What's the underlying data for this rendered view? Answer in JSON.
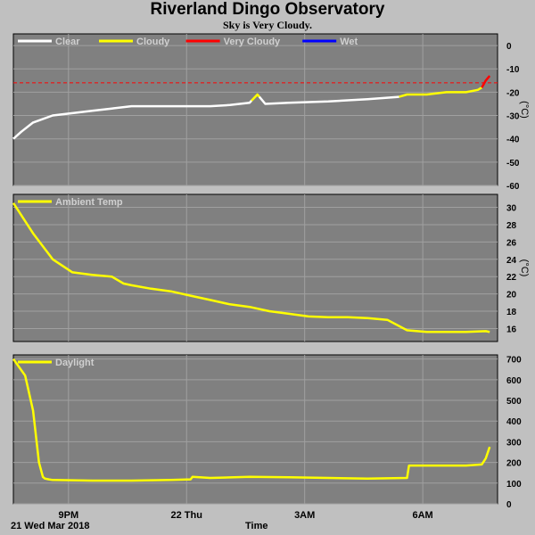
{
  "title": "Riverland Dingo Observatory",
  "subtitle": "Sky is Very Cloudy.",
  "x_axis": {
    "ticks": [
      {
        "label": "9PM",
        "hours": 1.4
      },
      {
        "label": "22 Thu",
        "hours": 4.4
      },
      {
        "label": "3AM",
        "hours": 7.4
      },
      {
        "label": "6AM",
        "hours": 10.4
      }
    ],
    "gridlines": [
      1.4,
      4.4,
      7.4,
      10.4
    ],
    "start_label": "21 Wed Mar 2018",
    "title": "Time",
    "range_hours": [
      0,
      12.3
    ]
  },
  "colors": {
    "background": "#c0c0c0",
    "plot_bg": "#808080",
    "grid": "#a0a0a0",
    "clear": "#ffffff",
    "cloudy": "#ffff00",
    "very_cloudy": "#ff0000",
    "wet": "#0000ff",
    "series": "#ffff00"
  },
  "chart_data": [
    {
      "type": "line",
      "legend": [
        {
          "name": "Clear",
          "color": "#ffffff"
        },
        {
          "name": "Cloudy",
          "color": "#ffff00"
        },
        {
          "name": "Very Cloudy",
          "color": "#ff0000"
        },
        {
          "name": "Wet",
          "color": "#0000ff"
        }
      ],
      "ylabel": "(°C)",
      "ylim": [
        -60,
        5
      ],
      "yticks": [
        0,
        -10,
        -20,
        -30,
        -40,
        -50,
        -60
      ],
      "threshold": -16,
      "x": [
        0,
        0.2,
        0.5,
        1.0,
        1.5,
        2.0,
        2.5,
        3.0,
        3.5,
        4.0,
        4.5,
        5.0,
        5.5,
        6.0,
        6.2,
        6.4,
        7.0,
        8.0,
        9.0,
        9.8,
        10.0,
        10.5,
        11.0,
        11.5,
        11.8,
        11.9,
        12.0,
        12.1
      ],
      "y": [
        -40,
        -37,
        -33,
        -30,
        -29,
        -28,
        -27,
        -26,
        -26,
        -26,
        -26,
        -26,
        -25.5,
        -24.5,
        -21,
        -25,
        -24.5,
        -24,
        -23,
        -22,
        -21,
        -21,
        -20,
        -20,
        -19,
        -18,
        -15,
        -13
      ],
      "segments": [
        {
          "state": "Clear",
          "from": 0,
          "to": 6.05
        },
        {
          "state": "Cloudy",
          "from": 6.05,
          "to": 6.25
        },
        {
          "state": "Clear",
          "from": 6.25,
          "to": 9.8
        },
        {
          "state": "Cloudy",
          "from": 9.8,
          "to": 11.9
        },
        {
          "state": "Very Cloudy",
          "from": 11.9,
          "to": 12.1
        }
      ]
    },
    {
      "type": "line",
      "legend": [
        {
          "name": "Ambient Temp",
          "color": "#ffff00"
        }
      ],
      "ylabel": "(°C)",
      "ylim": [
        14.5,
        31.5
      ],
      "yticks": [
        30,
        28,
        26,
        24,
        22,
        20,
        18,
        16
      ],
      "x": [
        0,
        0.5,
        1.0,
        1.5,
        2.0,
        2.5,
        2.8,
        3.0,
        3.5,
        4.0,
        4.5,
        5.0,
        5.5,
        6.0,
        6.5,
        7.0,
        7.5,
        8.0,
        8.5,
        9.0,
        9.5,
        10.0,
        10.5,
        11.0,
        11.5,
        12.0,
        12.1
      ],
      "y": [
        30.5,
        27,
        24,
        22.5,
        22.2,
        22,
        21.2,
        21,
        20.6,
        20.3,
        19.8,
        19.3,
        18.8,
        18.5,
        18,
        17.7,
        17.4,
        17.3,
        17.3,
        17.2,
        17.0,
        15.8,
        15.6,
        15.6,
        15.6,
        15.7,
        15.6
      ]
    },
    {
      "type": "line",
      "legend": [
        {
          "name": "Daylight",
          "color": "#ffff00"
        }
      ],
      "ylabel": "",
      "ylim": [
        0,
        720
      ],
      "yticks": [
        700,
        600,
        500,
        400,
        300,
        200,
        100,
        0
      ],
      "x": [
        0,
        0.3,
        0.5,
        0.65,
        0.75,
        0.8,
        0.9,
        1.0,
        2.0,
        3.0,
        4.0,
        4.5,
        4.55,
        5.0,
        6.0,
        7.0,
        8.0,
        9.0,
        10.0,
        10.05,
        11.0,
        11.5,
        11.9,
        12.0,
        12.1
      ],
      "y": [
        700,
        620,
        450,
        200,
        130,
        122,
        118,
        115,
        112,
        112,
        115,
        118,
        130,
        125,
        130,
        128,
        125,
        122,
        125,
        185,
        185,
        185,
        190,
        220,
        275
      ]
    }
  ]
}
